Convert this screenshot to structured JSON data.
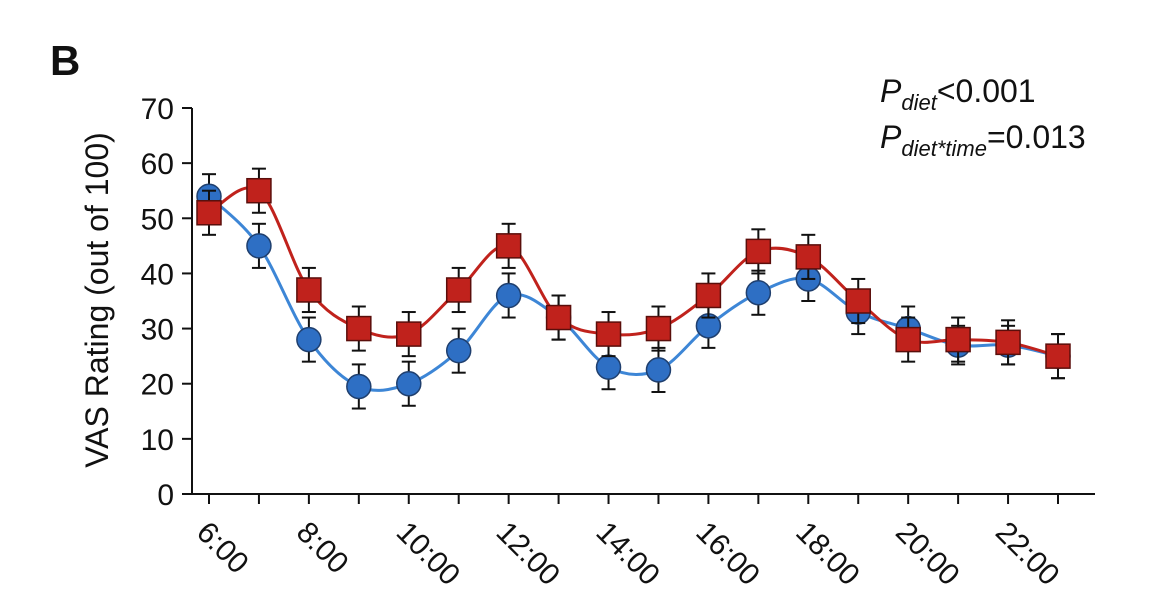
{
  "panel_label": "B",
  "stats": [
    {
      "p": "P",
      "sub": "diet",
      "value": "<0.001"
    },
    {
      "p": "P",
      "sub": "diet*time",
      "value": "=0.013"
    }
  ],
  "chart_data": {
    "type": "line",
    "ylabel": "VAS Rating (out of 100)",
    "xlabel": "",
    "ylim": [
      0,
      70
    ],
    "yticks": [
      0,
      10,
      20,
      30,
      40,
      50,
      60,
      70
    ],
    "x": [
      6,
      7,
      8,
      9,
      10,
      11,
      12,
      13,
      14,
      15,
      16,
      17,
      18,
      19,
      20,
      21,
      22,
      23
    ],
    "xtick_labels": [
      "6:00",
      "8:00",
      "10:00",
      "12:00",
      "14:00",
      "16:00",
      "18:00",
      "20:00",
      "22:00"
    ],
    "xtick_values": [
      6,
      8,
      10,
      12,
      14,
      16,
      18,
      20,
      22
    ],
    "grid": false,
    "series": [
      {
        "marker": "circle",
        "color": "#2e6fc4",
        "line_color": "#3d86d6",
        "values": [
          54,
          45,
          28,
          19.5,
          20,
          26,
          36,
          32,
          23,
          22.5,
          30.5,
          36.5,
          39,
          33,
          30,
          27,
          27,
          25
        ],
        "errors": [
          4,
          4,
          4,
          4,
          4,
          4,
          4,
          4,
          4,
          4,
          4,
          4,
          4,
          4,
          4,
          3.5,
          3.5,
          4
        ]
      },
      {
        "marker": "square",
        "color": "#c0221c",
        "line_color": "#c0221c",
        "values": [
          51,
          55,
          37,
          30,
          29,
          37,
          45,
          32,
          29,
          30,
          36,
          44,
          43,
          35,
          28,
          28,
          27.5,
          25
        ],
        "errors": [
          4,
          4,
          4,
          4,
          4,
          4,
          4,
          4,
          4,
          4,
          4,
          4,
          4,
          4,
          4,
          4,
          4,
          4
        ]
      }
    ]
  }
}
